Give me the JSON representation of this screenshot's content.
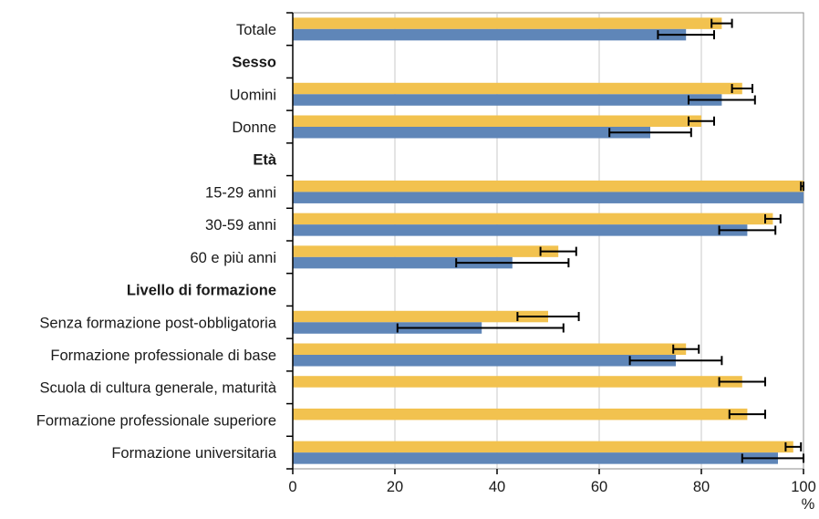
{
  "chart_data": {
    "type": "bar",
    "orientation": "horizontal",
    "categories": [
      {
        "label": "Totale",
        "header": false
      },
      {
        "label": "Sesso",
        "header": true
      },
      {
        "label": "Uomini",
        "header": false
      },
      {
        "label": "Donne",
        "header": false
      },
      {
        "label": "Età",
        "header": true
      },
      {
        "label": "15-29 anni",
        "header": false
      },
      {
        "label": "30-59 anni",
        "header": false
      },
      {
        "label": "60 e più anni",
        "header": false
      },
      {
        "label": "Livello di formazione",
        "header": true
      },
      {
        "label": "Senza formazione post-obbligatoria",
        "header": false
      },
      {
        "label": "Formazione professionale di base",
        "header": false
      },
      {
        "label": "Scuola di cultura generale, maturità",
        "header": false
      },
      {
        "label": "Formazione professionale superiore",
        "header": false
      },
      {
        "label": "Formazione universitaria",
        "header": false
      }
    ],
    "series": [
      {
        "color": "#f2c24f",
        "values": [
          84,
          null,
          88,
          80,
          null,
          100,
          94,
          52,
          null,
          50,
          77,
          88,
          89,
          98
        ],
        "error_low": [
          82,
          null,
          86,
          77.5,
          null,
          99.5,
          92.5,
          48.5,
          null,
          44,
          74.5,
          83.5,
          85.5,
          96.5
        ],
        "error_high": [
          86,
          null,
          90,
          82.5,
          null,
          100,
          95.5,
          55.5,
          null,
          56,
          79.5,
          92.5,
          92.5,
          99.5
        ]
      },
      {
        "color": "#5f86b8",
        "values": [
          77,
          null,
          84,
          70,
          null,
          100,
          89,
          43,
          null,
          37,
          75,
          null,
          null,
          95
        ],
        "error_low": [
          71.5,
          null,
          77.5,
          62,
          null,
          null,
          83.5,
          32,
          null,
          20.5,
          66,
          null,
          null,
          88
        ],
        "error_high": [
          82.5,
          null,
          90.5,
          78,
          null,
          null,
          94.5,
          54,
          null,
          53,
          84,
          null,
          null,
          100
        ]
      }
    ],
    "x_ticks": [
      "0",
      "20",
      "40",
      "60",
      "80",
      "100"
    ],
    "xlim": [
      0,
      100
    ],
    "unit_label": "%",
    "grid": "vertical"
  }
}
